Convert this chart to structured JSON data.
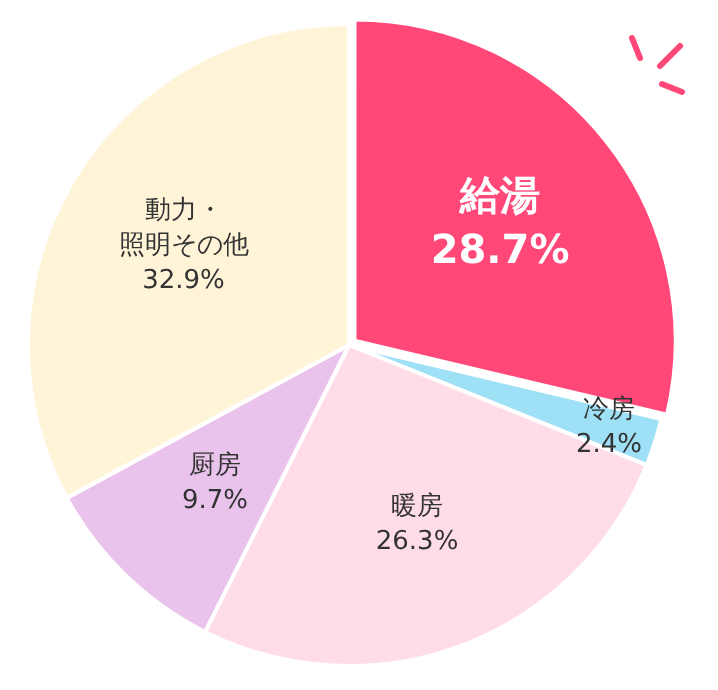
{
  "chart_data": {
    "type": "pie",
    "categories": [
      "給湯",
      "冷房",
      "暖房",
      "厨房",
      "動力・照明その他"
    ],
    "values": [
      28.7,
      2.4,
      26.3,
      9.7,
      32.9
    ],
    "value_labels": [
      "28.7%",
      "2.4%",
      "26.3%",
      "9.7%",
      "32.9%"
    ],
    "colors": [
      "#ff4778",
      "#9ee0f5",
      "#ffdde6",
      "#e9c3eb",
      "#fff4d8"
    ],
    "legend": false
  }
}
